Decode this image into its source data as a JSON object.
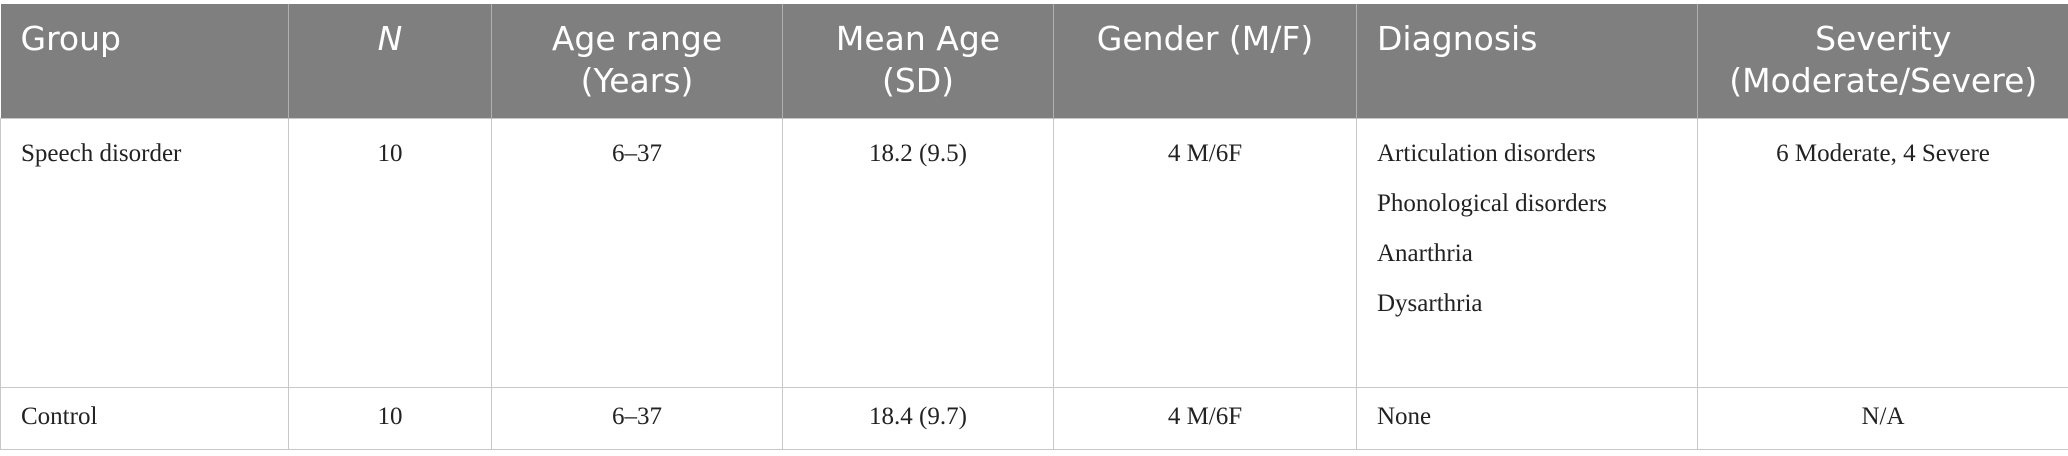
{
  "table": {
    "header": [
      "Group",
      "N",
      "Age range (Years)",
      "Mean Age (SD)",
      "Gender (M/F)",
      "Diagnosis",
      "Severity (Moderate/Severe)"
    ],
    "rows": [
      [
        "Speech disorder",
        "10",
        "6–37",
        "18.2 (9.5)",
        "4 M/6F",
        [
          "Articulation disorders Phonological disorders",
          "Anarthria",
          "Dysarthria"
        ],
        "6 Moderate, 4 Severe"
      ],
      [
        "Control",
        "10",
        "6–37",
        "18.4 (9.7)",
        "4 M/6F",
        [
          "None"
        ],
        "N/A"
      ]
    ]
  }
}
